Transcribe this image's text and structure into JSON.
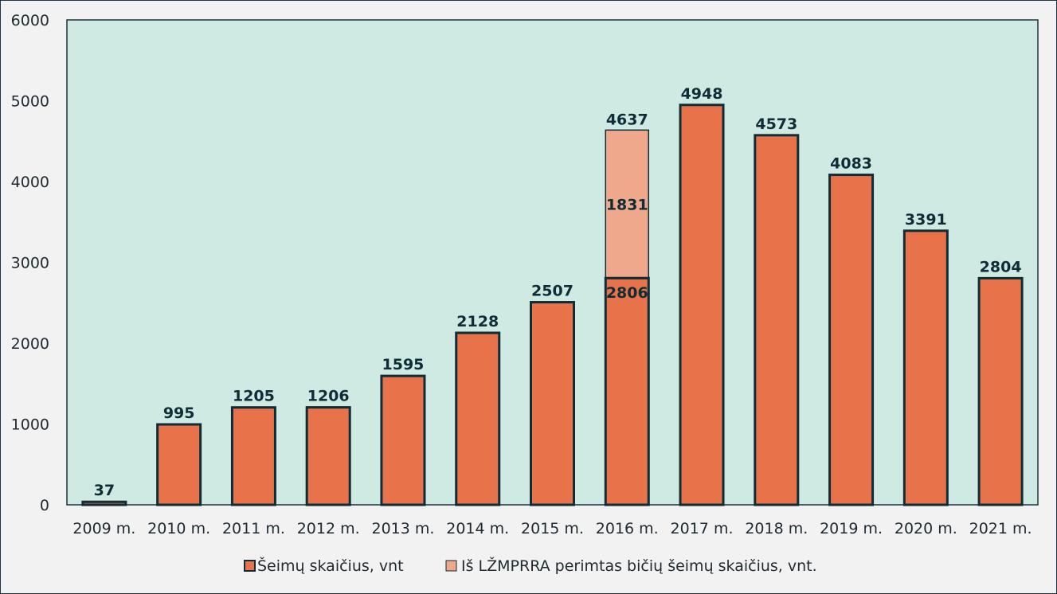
{
  "chart_data": {
    "type": "bar",
    "stacked": true,
    "categories": [
      "2009 m.",
      "2010 m.",
      "2011 m.",
      "2012 m.",
      "2013 m.",
      "2014 m.",
      "2015 m.",
      "2016 m.",
      "2017 m.",
      "2018 m.",
      "2019 m.",
      "2020 m.",
      "2021 m."
    ],
    "series": [
      {
        "name": "Šeimų skaičius, vnt",
        "color": "#e8734a",
        "values": [
          37,
          995,
          1205,
          1206,
          1595,
          2128,
          2507,
          2806,
          4948,
          4573,
          4083,
          3391,
          2804
        ]
      },
      {
        "name": "Iš LŽMPRRA perimtas bičių šeimų skaičius, vnt.",
        "color": "#efa88b",
        "values": [
          null,
          null,
          null,
          null,
          null,
          null,
          null,
          1831,
          null,
          null,
          null,
          null,
          null
        ]
      }
    ],
    "totals": [
      null,
      null,
      null,
      null,
      null,
      null,
      null,
      4637,
      null,
      null,
      null,
      null,
      null
    ],
    "yticks": [
      0,
      1000,
      2000,
      3000,
      4000,
      5000,
      6000
    ],
    "ylim": [
      0,
      6000
    ],
    "grid": false,
    "legend": "bottom",
    "plot_background": "#cfe9e3",
    "bar_outline": "#0f2d36"
  }
}
